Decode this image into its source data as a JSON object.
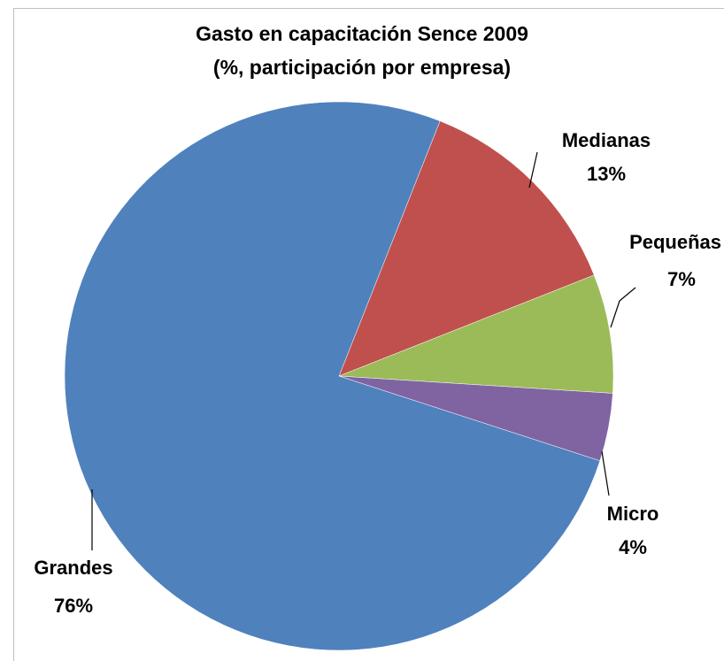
{
  "chart_data": {
    "type": "pie",
    "title": "Gasto en capacitación Sence 2009",
    "subtitle": "(%, participación por empresa)",
    "categories": [
      "Medianas",
      "Pequeñas",
      "Micro",
      "Grandes"
    ],
    "values": [
      13,
      7,
      4,
      76
    ],
    "value_labels": [
      "13%",
      "7%",
      "4%",
      "76%"
    ],
    "colors": [
      "#c0504d",
      "#9bbb59",
      "#8064a2",
      "#4f81bd"
    ]
  }
}
